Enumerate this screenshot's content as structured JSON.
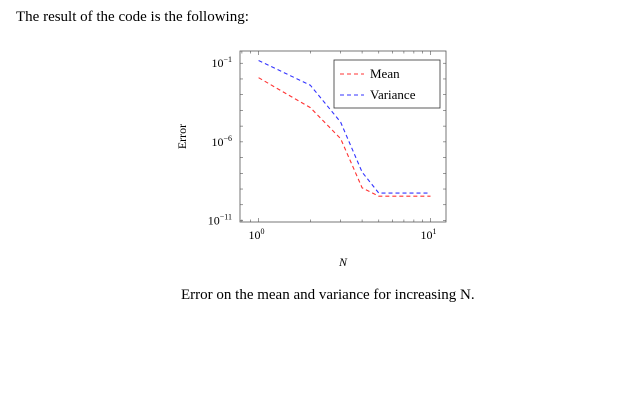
{
  "intro_text": "The result of the code is the following:",
  "caption": "Error on the mean and variance for increasing N.",
  "chart_data": {
    "type": "line",
    "title": "",
    "xlabel": "N",
    "ylabel": "Error",
    "x_scale": "log",
    "y_scale": "log",
    "x_ticks": [
      {
        "value": 1,
        "base": "10",
        "exp": "0"
      },
      {
        "value": 10,
        "base": "10",
        "exp": "1"
      }
    ],
    "y_ticks": [
      {
        "value": 0.1,
        "base": "10",
        "exp": "−1"
      },
      {
        "value": 1e-06,
        "base": "10",
        "exp": "−6"
      },
      {
        "value": 1e-11,
        "base": "10",
        "exp": "−11"
      }
    ],
    "xlim": [
      0.78,
      12.3
    ],
    "ylim": [
      8e-12,
      0.6
    ],
    "legend_position": "top-right",
    "series": [
      {
        "name": "Mean",
        "color": "#ff3333",
        "dash": "dashed",
        "points": [
          [
            1,
            0.012
          ],
          [
            2,
            0.00015
          ],
          [
            3,
            1.6e-06
          ],
          [
            4,
            1.2e-09
          ],
          [
            5,
            3.5e-10
          ],
          [
            10,
            3.5e-10
          ]
        ]
      },
      {
        "name": "Variance",
        "color": "#3333ff",
        "dash": "dashed",
        "points": [
          [
            1,
            0.15
          ],
          [
            2,
            0.004
          ],
          [
            3,
            1.8e-05
          ],
          [
            4,
            1.2e-08
          ],
          [
            5,
            5.5e-10
          ],
          [
            10,
            5.5e-10
          ]
        ]
      }
    ]
  }
}
